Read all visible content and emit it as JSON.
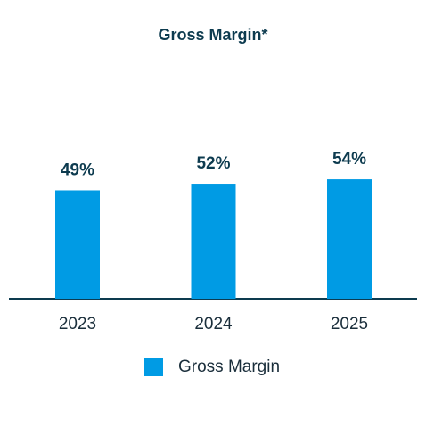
{
  "chart_data": {
    "type": "bar",
    "title": "Gross Margin*",
    "categories": [
      "2023",
      "2024",
      "2025"
    ],
    "series": [
      {
        "name": "Gross Margin",
        "color": "#009be4",
        "values": [
          49,
          52,
          54
        ],
        "value_labels": [
          "49%",
          "52%",
          "54%"
        ]
      }
    ]
  }
}
